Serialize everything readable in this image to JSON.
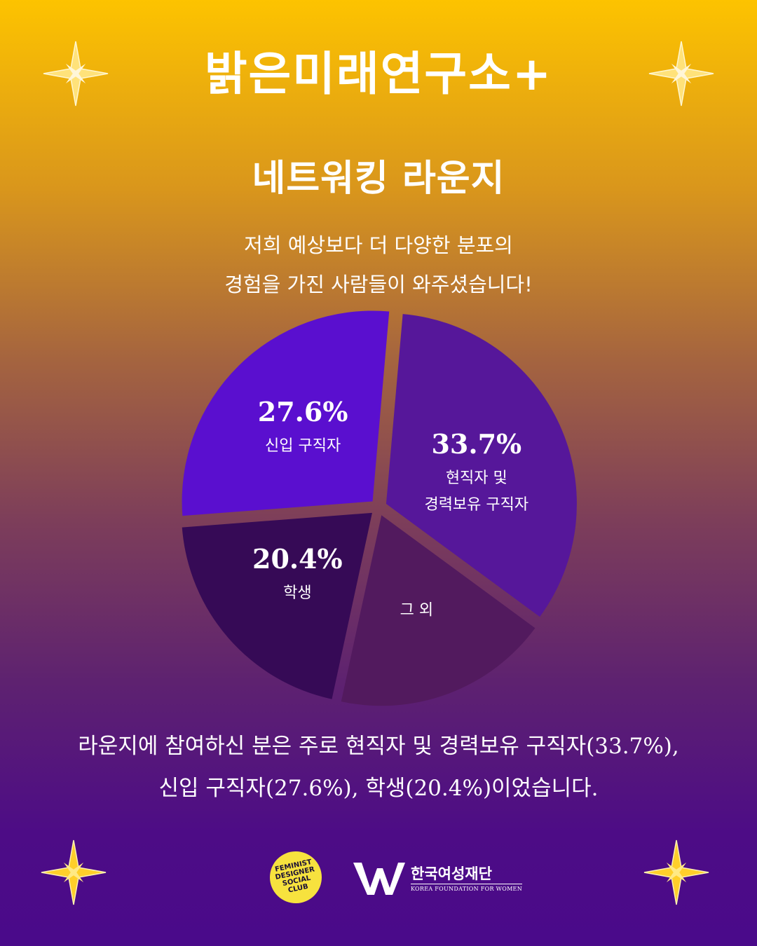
{
  "header": {
    "title": "밝은미래연구소+",
    "subtitle": "네트워킹 라운지",
    "intro_line1": "저희 예상보다 더 다양한 분포의",
    "intro_line2": "경험을 가진 사람들이 와주셨습니다!"
  },
  "chart_data": {
    "type": "pie",
    "title": "",
    "labels": [
      "신입 구직자",
      "현직자 및 경력보유 구직자",
      "그 외",
      "학생"
    ],
    "values": [
      27.6,
      33.7,
      18.3,
      20.4
    ],
    "value_labels": [
      "27.6%",
      "33.7%",
      "",
      "20.4%"
    ],
    "colors": [
      "#5a0fcf",
      "#56179a",
      "#521a5e",
      "#360a56"
    ],
    "exploded": true,
    "start_angle_deg": 0
  },
  "footer": {
    "summary_line1": "라운지에 참여하신 분은 주로 현직자 및 경력보유 구직자(33.7%),",
    "summary_line2": "신입 구직자(27.6%), 학생(20.4%)이었습니다.",
    "logo1_line1": "FEMINIST",
    "logo1_line2": "DESIGNER",
    "logo1_line3": "SOCIAL",
    "logo1_line4": "CLUB",
    "logo2_name": "한국여성재단",
    "logo2_en": "KOREA FOUNDATION FOR WOMEN"
  },
  "decor": {
    "sparkle_color": "#ffd23a",
    "sparkle_icon": "four-point-star-icon"
  }
}
